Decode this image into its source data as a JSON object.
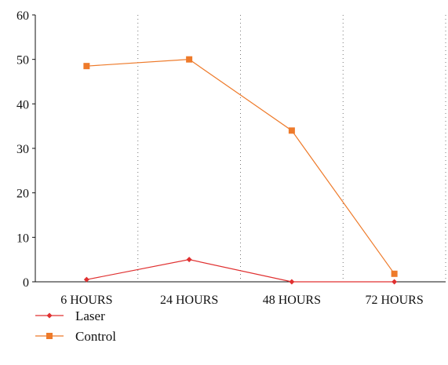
{
  "chart_data": {
    "type": "line",
    "categories": [
      "6 HOURS",
      "24 HOURS",
      "48 HOURS",
      "72 HOURS"
    ],
    "series": [
      {
        "name": "Laser",
        "values": [
          0.5,
          5,
          0,
          0
        ],
        "color": "#e03030",
        "marker": "diamond"
      },
      {
        "name": "Control",
        "values": [
          48.5,
          50,
          34,
          1.8
        ],
        "color": "#ee7a2a",
        "marker": "square"
      }
    ],
    "ylim": [
      0,
      60
    ],
    "yticks": [
      "0",
      "10",
      "20",
      "30",
      "40",
      "50",
      "60"
    ],
    "grid": "vertical-dotted",
    "legend_position": "bottom-left"
  }
}
